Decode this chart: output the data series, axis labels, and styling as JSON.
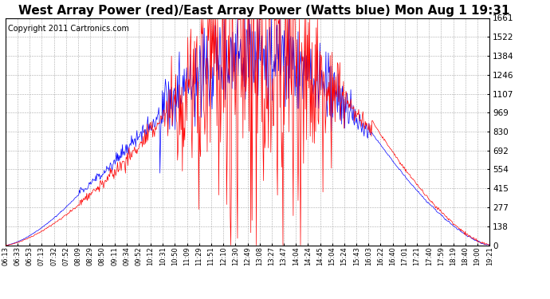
{
  "title": "West Array Power (red)/East Array Power (Watts blue) Mon Aug 1 19:31",
  "copyright": "Copyright 2011 Cartronics.com",
  "ylim": [
    0.0,
    1660.7
  ],
  "yticks": [
    0.0,
    138.4,
    276.8,
    415.2,
    553.6,
    692.0,
    830.3,
    968.7,
    1107.1,
    1245.5,
    1383.9,
    1522.3,
    1660.7
  ],
  "xtick_labels": [
    "06:13",
    "06:33",
    "06:53",
    "07:13",
    "07:32",
    "07:52",
    "08:09",
    "08:29",
    "08:50",
    "09:11",
    "09:34",
    "09:52",
    "10:12",
    "10:31",
    "10:50",
    "11:09",
    "11:29",
    "11:51",
    "12:10",
    "12:30",
    "12:49",
    "13:08",
    "13:27",
    "13:47",
    "14:04",
    "14:24",
    "14:45",
    "15:04",
    "15:24",
    "15:43",
    "16:03",
    "16:22",
    "16:40",
    "17:01",
    "17:21",
    "17:40",
    "17:59",
    "18:19",
    "18:40",
    "19:00",
    "19:21"
  ],
  "background_color": "#ffffff",
  "plot_bg_color": "#ffffff",
  "grid_color": "#aaaaaa",
  "red_color": "#ff0000",
  "blue_color": "#0000ff",
  "title_fontsize": 11,
  "copyright_fontsize": 7
}
